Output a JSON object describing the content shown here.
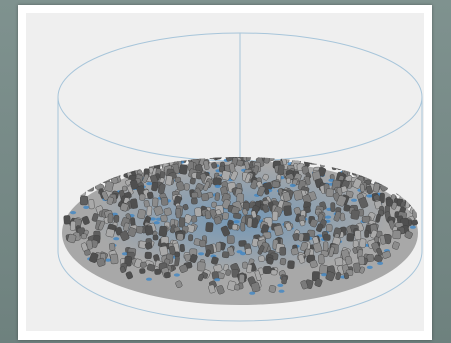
{
  "scene": {
    "subject": "pellet-bed-in-cylindrical-container",
    "colors": {
      "frame": "#7a8c8a",
      "panel_border": "#ffffff",
      "panel_bg": "#efefef",
      "container_outline": "#9fc1d8",
      "pellet_dark": "#4f4f4f",
      "pellet_mid": "#7a7a7a",
      "pellet_light": "#a9a9a9",
      "interstitial": "#3f86c4"
    }
  }
}
